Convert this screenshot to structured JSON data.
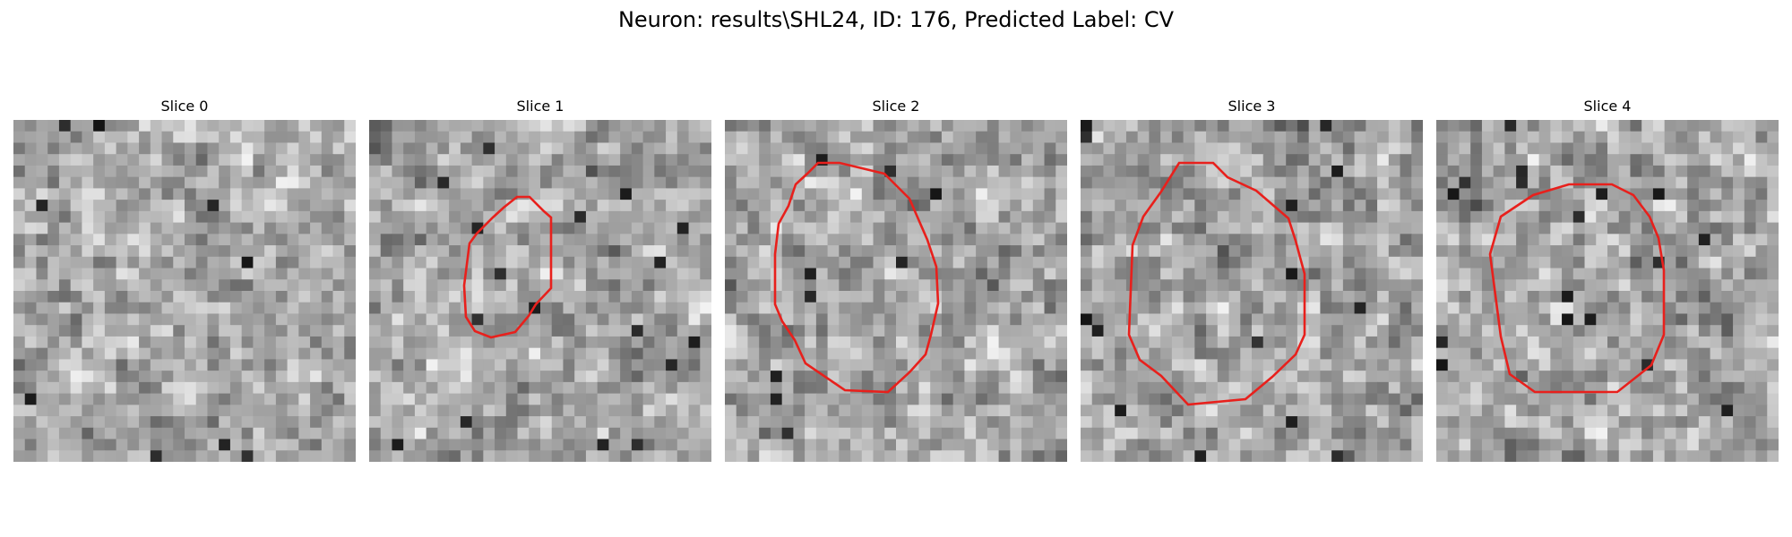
{
  "figure": {
    "title": "Neuron: results\\SHL24, ID: 176, Predicted Label: CV"
  },
  "colors": {
    "roi_outline": "#e8201c",
    "background": "#ffffff"
  },
  "image": {
    "grid_cells": 30,
    "colormap": "gray"
  },
  "panels": [
    {
      "title": "Slice 0",
      "has_roi": false
    },
    {
      "title": "Slice 1",
      "has_roi": true
    },
    {
      "title": "Slice 2",
      "has_roi": true
    },
    {
      "title": "Slice 3",
      "has_roi": true
    },
    {
      "title": "Slice 4",
      "has_roi": true
    }
  ]
}
